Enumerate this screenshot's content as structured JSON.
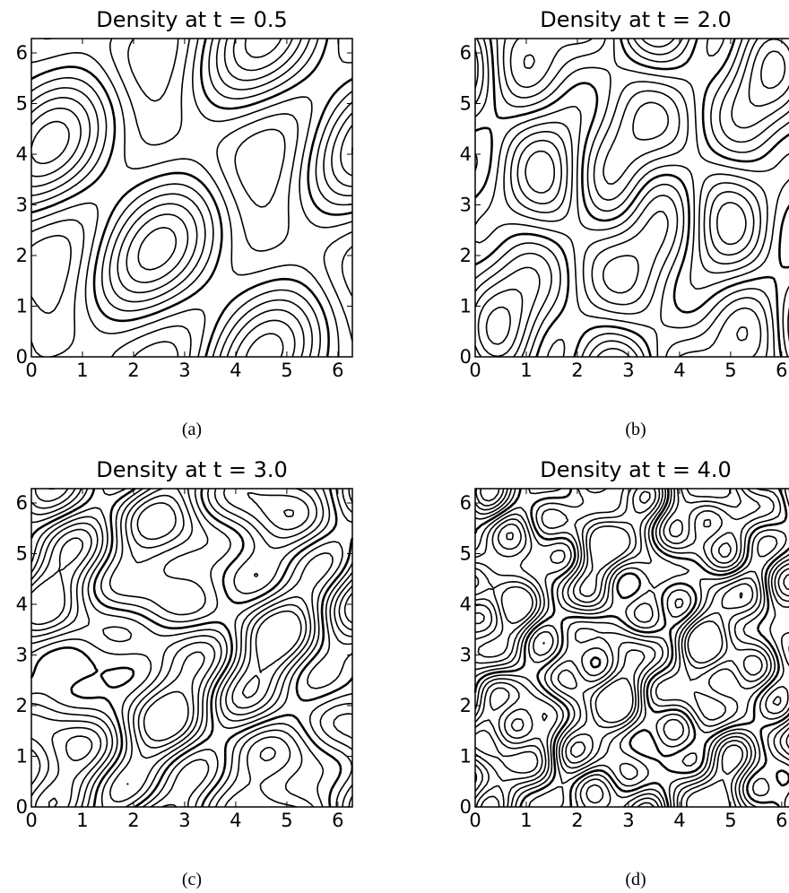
{
  "chart_data": [
    {
      "type": "contour",
      "title": "Density at t = 0.5",
      "caption": "(a)",
      "xlim": [
        0,
        6.283
      ],
      "ylim": [
        0,
        6.283
      ],
      "xticks": [
        0,
        1,
        2,
        3,
        4,
        5,
        6
      ],
      "yticks": [
        0,
        1,
        2,
        3,
        4,
        5,
        6
      ]
    },
    {
      "type": "contour",
      "title": "Density at t = 2.0",
      "caption": "(b)",
      "xlim": [
        0,
        6.283
      ],
      "ylim": [
        0,
        6.283
      ],
      "xticks": [
        0,
        1,
        2,
        3,
        4,
        5,
        6
      ],
      "yticks": [
        0,
        1,
        2,
        3,
        4,
        5,
        6
      ]
    },
    {
      "type": "contour",
      "title": "Density at t = 3.0",
      "caption": "(c)",
      "xlim": [
        0,
        6.283
      ],
      "ylim": [
        0,
        6.283
      ],
      "xticks": [
        0,
        1,
        2,
        3,
        4,
        5,
        6
      ],
      "yticks": [
        0,
        1,
        2,
        3,
        4,
        5,
        6
      ]
    },
    {
      "type": "contour",
      "title": "Density at t = 4.0",
      "caption": "(d)",
      "xlim": [
        0,
        6.283
      ],
      "ylim": [
        0,
        6.283
      ],
      "xticks": [
        0,
        1,
        2,
        3,
        4,
        5,
        6
      ],
      "yticks": [
        0,
        1,
        2,
        3,
        4,
        5,
        6
      ]
    }
  ]
}
